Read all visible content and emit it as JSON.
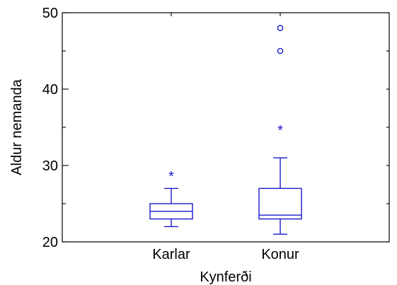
{
  "chart_data": {
    "type": "box",
    "title": "",
    "xlabel": "Kynferði",
    "ylabel": "Aldur nemanda",
    "ylim": [
      20,
      50
    ],
    "yticks": [
      20,
      30,
      40,
      50
    ],
    "grid": false,
    "categories": [
      "Karlar",
      "Konur"
    ],
    "boxes": [
      {
        "category": "Karlar",
        "whisker_low": 22,
        "q1": 23,
        "median": 24,
        "q3": 25,
        "whisker_high": 27,
        "suspected_outliers": [
          29
        ],
        "outliers": []
      },
      {
        "category": "Konur",
        "whisker_low": 21,
        "q1": 23,
        "median": 23.5,
        "q3": 27,
        "whisker_high": 31,
        "suspected_outliers": [
          35
        ],
        "outliers": [
          45,
          48
        ]
      }
    ],
    "color": "#1a1acc"
  }
}
